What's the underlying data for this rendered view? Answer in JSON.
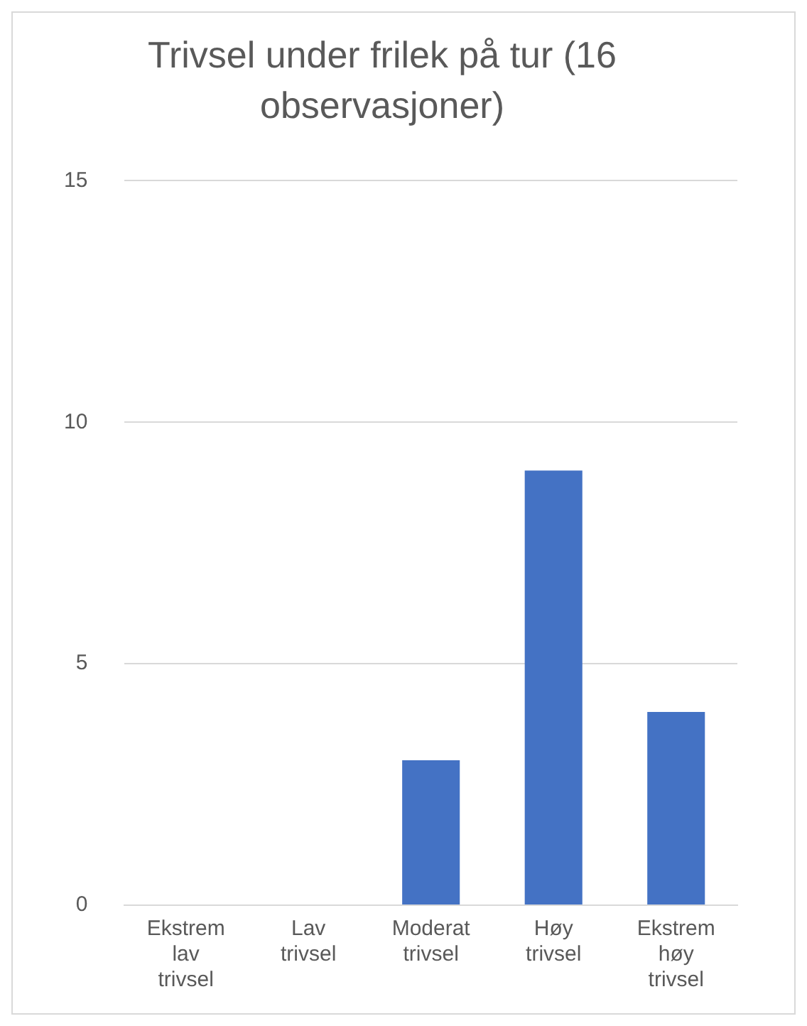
{
  "chart_data": {
    "type": "bar",
    "title": "Trivsel under frilek på tur (16 observasjoner)",
    "categories": [
      "Ekstrem lav trivsel",
      "Lav trivsel",
      "Moderat trivsel",
      "Høy trivsel",
      "Ekstrem høy trivsel"
    ],
    "values": [
      0,
      0,
      3,
      9,
      4
    ],
    "color": "#4472c4",
    "ylim": [
      0,
      15
    ],
    "yticks": [
      0,
      5,
      10,
      15
    ],
    "grid": "y",
    "legend": false
  }
}
